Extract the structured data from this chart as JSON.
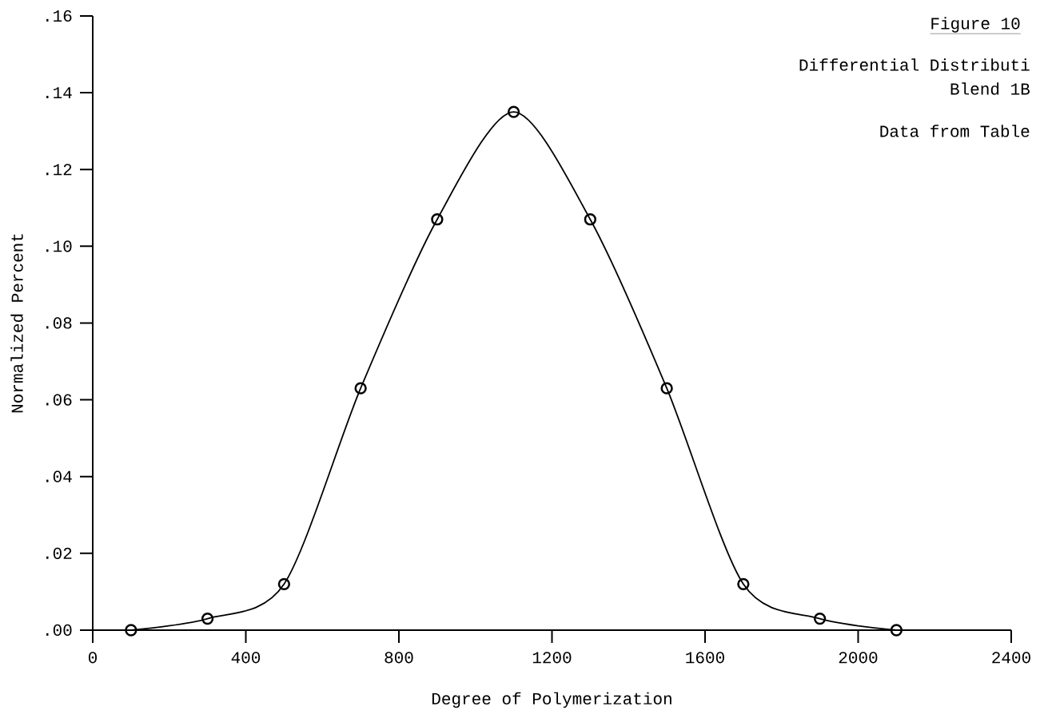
{
  "chart_data": {
    "type": "line",
    "title": "Figure 10",
    "xlabel": "Degree of Polymerization",
    "ylabel": "Normalized Percent",
    "annotations": [
      "Differential Distributi",
      "Blend 1B",
      "Data from Table"
    ],
    "x": [
      100,
      300,
      500,
      700,
      900,
      1100,
      1300,
      1500,
      1700,
      1900,
      2100
    ],
    "series": [
      {
        "color": "#000000",
        "values": [
          0.0,
          0.003,
          0.012,
          0.063,
          0.107,
          0.135,
          0.107,
          0.063,
          0.012,
          0.003,
          0.0
        ]
      }
    ],
    "marker": "circle",
    "line_style": "solid",
    "grid": false,
    "xlim": [
      0,
      2400
    ],
    "ylim": [
      0,
      0.16
    ],
    "xticks": [
      0,
      400,
      800,
      1200,
      1600,
      2000,
      2400
    ],
    "yticks": [
      {
        "value": 0,
        "label": ".00"
      },
      {
        "value": 0.02,
        "label": ".02"
      },
      {
        "value": 0.04,
        "label": ".04"
      },
      {
        "value": 0.06,
        "label": ".06"
      },
      {
        "value": 0.08,
        "label": ".08"
      },
      {
        "value": 0.1,
        "label": ".10"
      },
      {
        "value": 0.12,
        "label": ".12"
      },
      {
        "value": 0.14,
        "label": ".14"
      },
      {
        "value": 0.16,
        "label": ".16"
      }
    ]
  }
}
